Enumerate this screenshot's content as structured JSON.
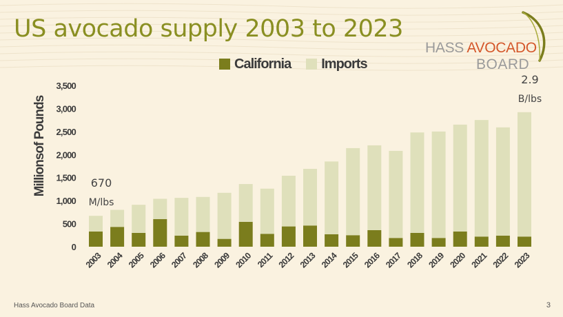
{
  "title": "US avocado supply 2003 to 2023",
  "logo": {
    "hass": "HASS",
    "avocado": "AVOCADO",
    "board": "BOARD"
  },
  "footer": {
    "source": "Hass Avocado Board Data",
    "page_number": "3"
  },
  "colors": {
    "california": "#7b7d1d",
    "imports": "#dfe0bb",
    "title": "#8a8f22",
    "background": "#faf2e0"
  },
  "chart_data": {
    "type": "bar",
    "stacked": true,
    "legend_position": "top-center",
    "grid": false,
    "ylabel": "Millionsof Pounds",
    "xlabel": "",
    "ylim": [
      0,
      3500
    ],
    "yticks": [
      0,
      500,
      1000,
      1500,
      2000,
      2500,
      3000,
      3500
    ],
    "ytick_labels": [
      "0",
      "500",
      "1,000",
      "1,500",
      "2,000",
      "2,500",
      "3,000",
      "3,500"
    ],
    "categories": [
      "2003",
      "2004",
      "2005",
      "2006",
      "2007",
      "2008",
      "2009",
      "2010",
      "2011",
      "2012",
      "2013",
      "2014",
      "2015",
      "2016",
      "2017",
      "2018",
      "2019",
      "2020",
      "2021",
      "2022",
      "2023"
    ],
    "series": [
      {
        "name": "California",
        "values": [
          330,
          430,
          300,
          600,
          240,
          320,
          170,
          540,
          280,
          440,
          460,
          270,
          250,
          360,
          190,
          300,
          190,
          330,
          220,
          240,
          220
        ]
      },
      {
        "name": "Imports",
        "values": [
          340,
          370,
          610,
          440,
          820,
          760,
          1000,
          820,
          980,
          1100,
          1230,
          1580,
          1890,
          1840,
          1890,
          2180,
          2310,
          2320,
          2530,
          2350,
          2700
        ]
      }
    ],
    "annotations": [
      {
        "category": "2003",
        "value": "670",
        "unit": "M/lbs"
      },
      {
        "category": "2023",
        "value": "2.9",
        "unit": "B/lbs"
      }
    ]
  }
}
